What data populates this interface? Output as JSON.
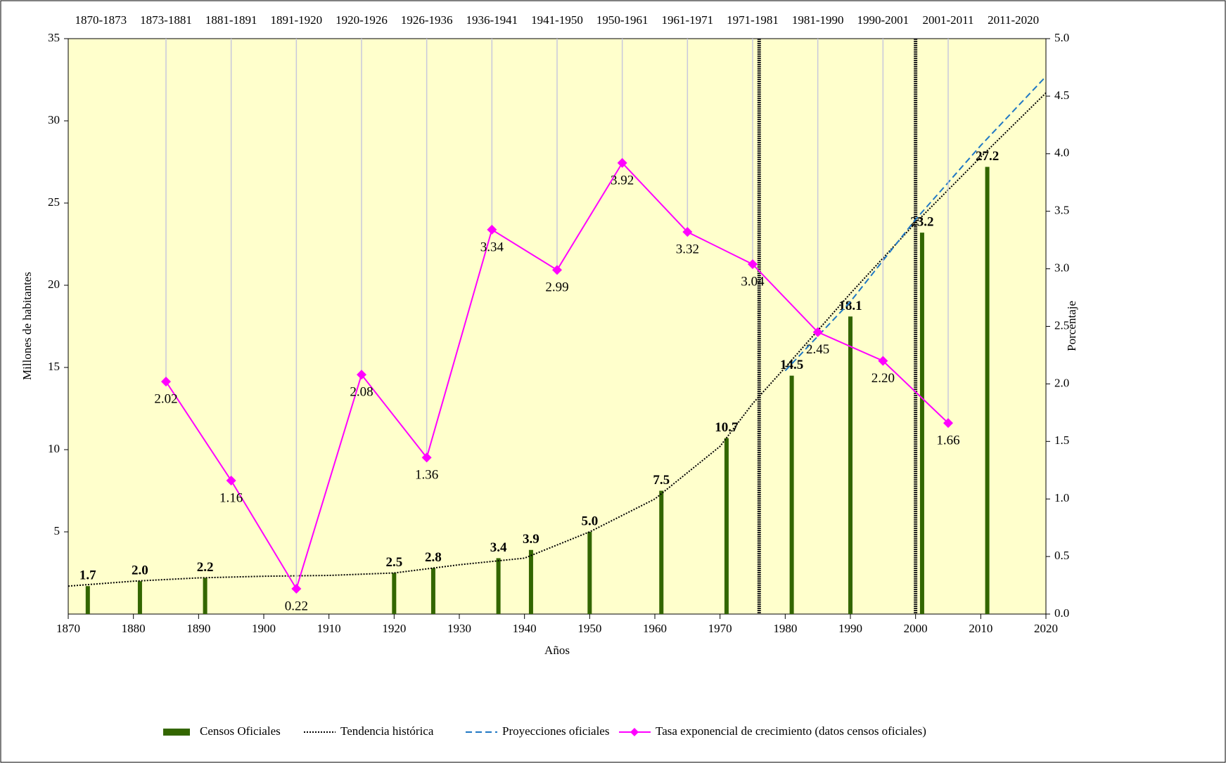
{
  "chart_data": {
    "type": "bar",
    "top_categories": [
      "1870-1873",
      "1873-1881",
      "1881-1891",
      "1891-1920",
      "1920-1926",
      "1926-1936",
      "1936-1941",
      "1941-1950",
      "1950-1961",
      "1961-1971",
      "1971-1981",
      "1981-1990",
      "1990-2001",
      "2001-2011",
      "2011-2020"
    ],
    "x_label": "Años",
    "y_label": "Millones  de habitantes",
    "y2_label": "Porcentaje",
    "xlim": [
      1870,
      2020
    ],
    "xticks": [
      1870,
      1880,
      1890,
      1900,
      1910,
      1920,
      1930,
      1940,
      1950,
      1960,
      1970,
      1980,
      1990,
      2000,
      2010,
      2020
    ],
    "ylim": [
      0,
      35
    ],
    "yticks": [
      5,
      10,
      15,
      20,
      25,
      30,
      35
    ],
    "y2lim": [
      0,
      5
    ],
    "y2ticks": [
      {
        "value": 0,
        "label": "0.0"
      },
      0.5,
      {
        "value": 1,
        "label": "1.0"
      },
      1.5,
      {
        "value": 2,
        "label": "2.0"
      },
      2.5,
      {
        "value": 3,
        "label": "3.0"
      },
      3.5,
      {
        "value": 4,
        "label": "4.0"
      },
      4.5,
      {
        "value": 5,
        "label": "5.0"
      }
    ],
    "reference_lines": [
      1976,
      2000
    ],
    "series": [
      {
        "name": "Censos Oficiales",
        "type": "bar",
        "color": "#336600",
        "x": [
          1873,
          1881,
          1891,
          1920,
          1926,
          1936,
          1941,
          1950,
          1961,
          1971,
          1981,
          1990,
          2001,
          2011
        ],
        "values": [
          1.7,
          2.0,
          2.2,
          2.5,
          2.8,
          3.4,
          3.9,
          5.0,
          7.5,
          10.7,
          14.5,
          18.1,
          23.2,
          27.2
        ],
        "value_labels": [
          "1.7",
          "2.0",
          "2.2",
          "2.5",
          "2.8",
          "3.4",
          "3.9",
          "5.0",
          "7.5",
          "10.7",
          "14.5",
          "18.1",
          "23.2",
          "27.2"
        ]
      },
      {
        "name": "Tendencia histórica",
        "type": "line",
        "style": "dotted",
        "color": "#000000",
        "x": [
          1870,
          1880,
          1890,
          1900,
          1910,
          1920,
          1930,
          1940,
          1950,
          1960,
          1970,
          1975,
          1980,
          1990,
          2000,
          2010,
          2020
        ],
        "values": [
          1.7,
          2.0,
          2.2,
          2.3,
          2.35,
          2.5,
          3.0,
          3.4,
          5.0,
          7.0,
          10.2,
          12.8,
          15.0,
          19.5,
          23.8,
          27.8,
          31.7
        ]
      },
      {
        "name": "Proyecciones oficiales",
        "type": "line",
        "style": "dashed",
        "color": "#1f77c4",
        "x": [
          1980,
          1990,
          2000,
          2010,
          2020
        ],
        "values": [
          14.8,
          19.0,
          24.0,
          28.5,
          32.7
        ]
      },
      {
        "name": "Tasa exponencial de crecimiento (datos censos oficiales)",
        "type": "line",
        "axis": "y2",
        "x_axis": "top",
        "color": "#ff00ff",
        "values": [
          null,
          2.02,
          1.16,
          0.22,
          2.08,
          1.36,
          3.34,
          2.99,
          3.92,
          3.32,
          3.04,
          2.45,
          2.2,
          1.66,
          null
        ],
        "value_labels": [
          null,
          "2.02",
          "1.16",
          "0.22",
          "2.08",
          "1.36",
          "3.34",
          "2.99",
          "3.92",
          "3.32",
          "3.04",
          "2.45",
          "2.20",
          "1.66",
          null
        ]
      }
    ]
  }
}
